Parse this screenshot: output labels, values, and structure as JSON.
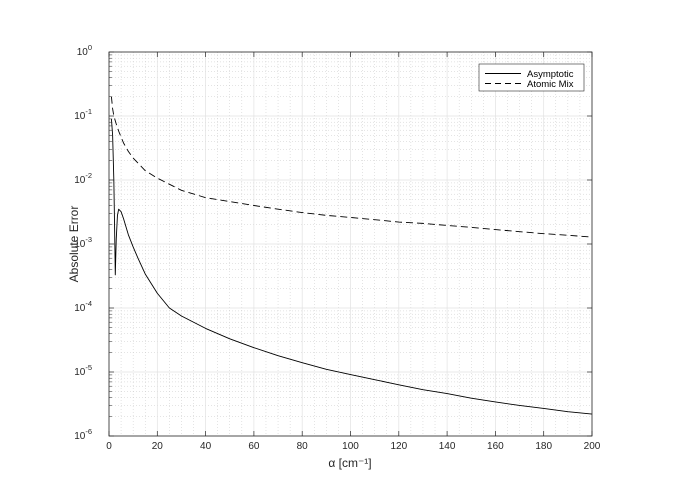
{
  "chart_data": {
    "type": "line",
    "title": "",
    "xlabel": "α [cm⁻¹]",
    "ylabel": "Absolute Error",
    "xlim": [
      0,
      200
    ],
    "ylim": [
      1e-06,
      1
    ],
    "yscale": "log",
    "grid": true,
    "minor_grid": true,
    "legend_position": "top-right",
    "x_ticks": [
      "0",
      "20",
      "40",
      "60",
      "80",
      "100",
      "120",
      "140",
      "160",
      "180",
      "200"
    ],
    "y_ticks": [
      {
        "base": "10",
        "exp": "-6"
      },
      {
        "base": "10",
        "exp": "-5"
      },
      {
        "base": "10",
        "exp": "-4"
      },
      {
        "base": "10",
        "exp": "-3"
      },
      {
        "base": "10",
        "exp": "-2"
      },
      {
        "base": "10",
        "exp": "-1"
      },
      {
        "base": "10",
        "exp": "0"
      }
    ],
    "series": [
      {
        "name": "Asymptotic",
        "line_style": "solid",
        "color": "#000000",
        "points": [
          [
            1.0,
            0.09
          ],
          [
            1.5,
            0.05
          ],
          [
            2.0,
            0.01
          ],
          [
            2.3,
            0.002
          ],
          [
            2.6,
            0.00033
          ],
          [
            3.0,
            0.0012
          ],
          [
            3.5,
            0.0028
          ],
          [
            4.0,
            0.0035
          ],
          [
            5.0,
            0.0032
          ],
          [
            6.0,
            0.0025
          ],
          [
            8.0,
            0.0014
          ],
          [
            10.0,
            0.0009
          ],
          [
            12.0,
            0.0006
          ],
          [
            15.0,
            0.00034
          ],
          [
            20.0,
            0.00017
          ],
          [
            25.0,
            0.0001
          ],
          [
            30.0,
            7.5e-05
          ],
          [
            40.0,
            4.8e-05
          ],
          [
            50.0,
            3.3e-05
          ],
          [
            60.0,
            2.4e-05
          ],
          [
            70.0,
            1.8e-05
          ],
          [
            80.0,
            1.4e-05
          ],
          [
            90.0,
            1.1e-05
          ],
          [
            100.0,
            9.1e-06
          ],
          [
            110.0,
            7.6e-06
          ],
          [
            120.0,
            6.3e-06
          ],
          [
            130.0,
            5.3e-06
          ],
          [
            140.0,
            4.6e-06
          ],
          [
            150.0,
            3.9e-06
          ],
          [
            160.0,
            3.4e-06
          ],
          [
            170.0,
            3e-06
          ],
          [
            180.0,
            2.7e-06
          ],
          [
            190.0,
            2.4e-06
          ],
          [
            200.0,
            2.2e-06
          ]
        ]
      },
      {
        "name": "Atomic Mix",
        "line_style": "dashed",
        "color": "#000000",
        "points": [
          [
            1.0,
            0.2
          ],
          [
            1.5,
            0.13
          ],
          [
            2.0,
            0.1
          ],
          [
            3.0,
            0.075
          ],
          [
            4.0,
            0.058
          ],
          [
            6.0,
            0.038
          ],
          [
            8.0,
            0.028
          ],
          [
            10.0,
            0.022
          ],
          [
            15.0,
            0.014
          ],
          [
            20.0,
            0.0107
          ],
          [
            30.0,
            0.0069
          ],
          [
            40.0,
            0.0053
          ],
          [
            50.0,
            0.0046
          ],
          [
            60.0,
            0.004
          ],
          [
            70.0,
            0.0035
          ],
          [
            80.0,
            0.0031
          ],
          [
            90.0,
            0.0028
          ],
          [
            100.0,
            0.0026
          ],
          [
            110.0,
            0.0024
          ],
          [
            120.0,
            0.0022
          ],
          [
            130.0,
            0.0021
          ],
          [
            140.0,
            0.00195
          ],
          [
            150.0,
            0.00182
          ],
          [
            160.0,
            0.00168
          ],
          [
            170.0,
            0.00156
          ],
          [
            180.0,
            0.00145
          ],
          [
            190.0,
            0.00137
          ],
          [
            200.0,
            0.00128
          ]
        ]
      }
    ]
  }
}
